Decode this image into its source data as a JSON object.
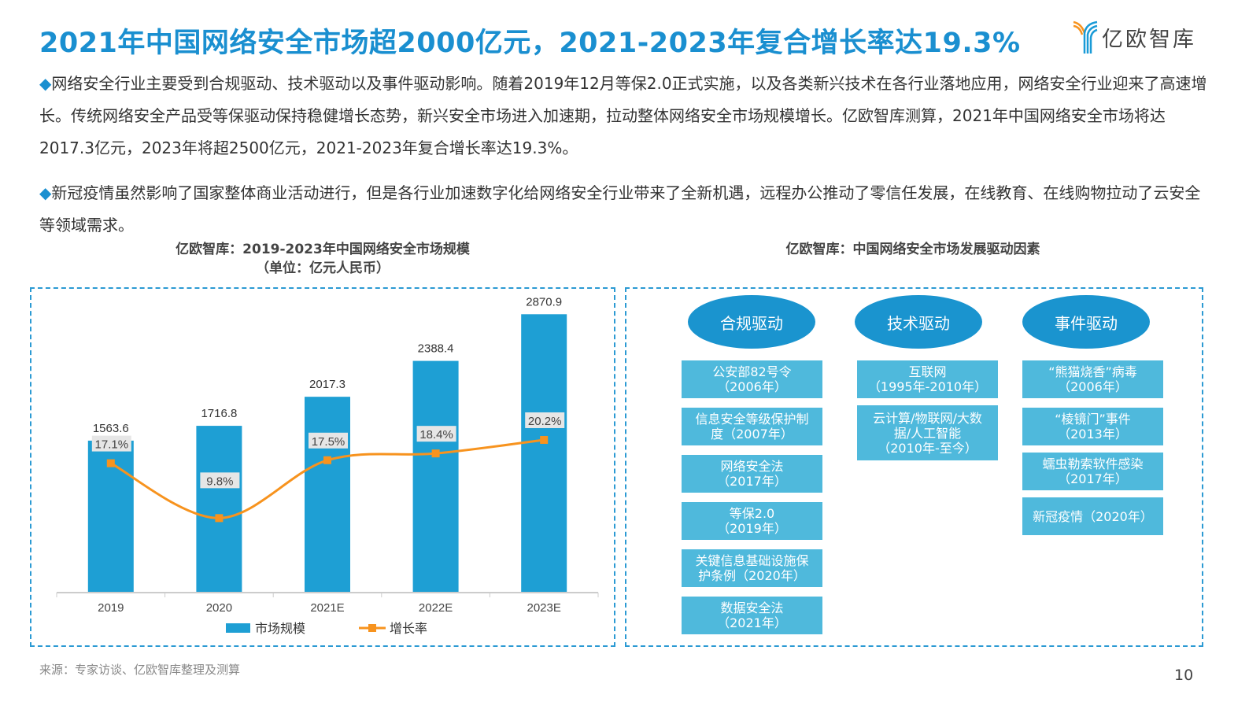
{
  "title": "2021年中国网络安全市场超2000亿元，2021-2023年复合增长率达19.3%",
  "logo": {
    "text": "亿欧智库",
    "colors": [
      "#f7931e",
      "#1a9bd7"
    ]
  },
  "paragraphs": [
    {
      "bullet": "◆",
      "text": "网络安全行业主要受到合规驱动、技术驱动以及事件驱动影响。随着2019年12月等保2.0正式实施，以及各类新兴技术在各行业落地应用，网络安全行业迎来了高速增长。传统网络安全产品受等保驱动保持稳健增长态势，新兴安全市场进入加速期，拉动整体网络安全市场规模增长。亿欧智库测算，2021年中国网络安全市场将达2017.3亿元，2023年将超2500亿元，2021-2023年复合增长率达19.3%。"
    },
    {
      "bullet": "◆",
      "text": "新冠疫情虽然影响了国家整体商业活动进行，但是各行业加速数字化给网络安全行业带来了全新机遇，远程办公推动了零信任发展，在线教育、在线购物拉动了云安全等领域需求。"
    }
  ],
  "chart_data": {
    "type": "bar",
    "title": "亿欧智库：2019-2023年中国网络安全市场规模",
    "subtitle": "（单位：亿元人民币）",
    "categories": [
      "2019",
      "2020",
      "2021E",
      "2022E",
      "2023E"
    ],
    "series": [
      {
        "name": "市场规模",
        "type": "bar",
        "values": [
          1563.6,
          1716.8,
          2017.3,
          2388.4,
          2870.9
        ],
        "labels": [
          "1563.6",
          "1716.8",
          "2017.3",
          "2388.4",
          "2870.9"
        ],
        "color": "#1e9fd4"
      },
      {
        "name": "增长率",
        "type": "line",
        "axis": "secondary",
        "values": [
          17.1,
          9.8,
          17.5,
          18.4,
          20.2
        ],
        "labels": [
          "17.1%",
          "9.8%",
          "17.5%",
          "18.4%",
          "20.2%"
        ],
        "color": "#f7931e"
      }
    ],
    "ylim": [
      0,
      3500
    ],
    "y2lim": [
      0,
      45
    ],
    "grid": false,
    "legend": "bottom"
  },
  "diagram": {
    "title": "亿欧智库：中国网络安全市场发展驱动因素",
    "columns": [
      {
        "header": "合规驱动",
        "items": [
          [
            "公安部82号令",
            "（2006年）"
          ],
          [
            "信息安全等级保护制",
            "度（2007年）"
          ],
          [
            "网络安全法",
            "（2017年）"
          ],
          [
            "等保2.0",
            "（2019年）"
          ],
          [
            "关键信息基础设施保",
            "护条例（2020年）"
          ],
          [
            "数据安全法",
            "（2021年）"
          ]
        ]
      },
      {
        "header": "技术驱动",
        "items": [
          [
            "互联网",
            "（1995年-2010年）"
          ],
          [
            "云计算/物联网/大数",
            "据/人工智能",
            "（2010年-至今）"
          ]
        ]
      },
      {
        "header": "事件驱动",
        "items": [
          [
            "“熊猫烧香”病毒",
            "（2006年）"
          ],
          [
            "“棱镜门”事件",
            "（2013年）"
          ],
          [
            "蠕虫勒索软件感染",
            "（2017年）"
          ],
          [
            "新冠疫情（2020年）"
          ]
        ]
      }
    ]
  },
  "source": "来源：专家访谈、亿欧智库整理及测算",
  "page_number": "10"
}
